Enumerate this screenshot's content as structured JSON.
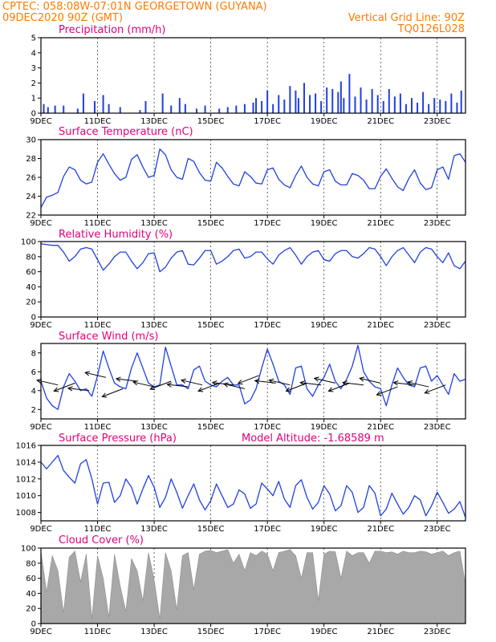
{
  "header": {
    "line1_left": "CPTEC:   058:08W-07:01N   GEORGETOWN (GUYANA)",
    "line2_left": "09DEC2020 90Z (GMT)",
    "line2_right": "Vertical Grid Line: 90Z",
    "line3_right": "TQ0126L028"
  },
  "colors": {
    "header": "#ff7a00",
    "title": "#e0007a",
    "series": "#2040e0",
    "cloud": "#a8a8a8"
  },
  "x_axis": {
    "start_day": 9,
    "end_day": 24,
    "tick_labels": [
      "9DEC",
      "11DEC",
      "13DEC",
      "15DEC",
      "17DEC",
      "19DEC",
      "21DEC",
      "23DEC"
    ]
  },
  "chart_data": [
    {
      "type": "bar",
      "title": "Precipitation (mm/h)",
      "ylim": [
        0,
        5
      ],
      "yticks": [
        0,
        1,
        2,
        3,
        4,
        5
      ],
      "x_day": [
        9.1,
        9.25,
        9.5,
        9.8,
        10.3,
        10.5,
        10.9,
        11.2,
        11.4,
        11.8,
        12.5,
        12.7,
        13.3,
        13.6,
        13.9,
        14.1,
        14.5,
        14.8,
        15.3,
        15.6,
        15.9,
        16.2,
        16.5,
        16.6,
        16.8,
        17.0,
        17.2,
        17.4,
        17.6,
        17.8,
        18.0,
        18.1,
        18.3,
        18.5,
        18.7,
        18.9,
        19.1,
        19.3,
        19.5,
        19.6,
        19.7,
        19.9,
        20.1,
        20.3,
        20.5,
        20.7,
        20.9,
        21.1,
        21.3,
        21.5,
        21.7,
        21.9,
        22.1,
        22.3,
        22.5,
        22.7,
        22.9,
        23.1,
        23.3,
        23.5,
        23.7,
        23.85
      ],
      "values": [
        0.6,
        0.4,
        0.5,
        0.5,
        0.3,
        1.3,
        0.8,
        1.2,
        0.6,
        0.4,
        0.2,
        0.8,
        1.3,
        0.5,
        1.0,
        0.6,
        0.3,
        0.5,
        0.3,
        0.4,
        0.5,
        0.6,
        0.7,
        1.0,
        0.8,
        1.5,
        0.6,
        1.2,
        0.9,
        1.8,
        1.5,
        1.0,
        2.0,
        1.2,
        1.3,
        0.8,
        1.7,
        1.6,
        1.4,
        2.1,
        1.0,
        2.6,
        1.1,
        1.7,
        0.9,
        1.6,
        1.2,
        0.8,
        1.6,
        1.1,
        1.3,
        0.6,
        1.0,
        0.7,
        1.4,
        0.6,
        1.0,
        0.9,
        0.8,
        1.3,
        0.7,
        1.5
      ]
    },
    {
      "type": "line",
      "title": "Surface Temperature (nC)",
      "ylim": [
        22,
        30
      ],
      "yticks": [
        22,
        24,
        26,
        28,
        30
      ],
      "x_day": [
        9.0,
        9.2,
        9.4,
        9.6,
        9.8,
        10.0,
        10.2,
        10.4,
        10.6,
        10.8,
        11.0,
        11.2,
        11.4,
        11.6,
        11.8,
        12.0,
        12.2,
        12.4,
        12.6,
        12.8,
        13.0,
        13.2,
        13.4,
        13.6,
        13.8,
        14.0,
        14.2,
        14.4,
        14.6,
        14.8,
        15.0,
        15.2,
        15.4,
        15.6,
        15.8,
        16.0,
        16.2,
        16.4,
        16.6,
        16.8,
        17.0,
        17.2,
        17.4,
        17.6,
        17.8,
        18.0,
        18.2,
        18.4,
        18.6,
        18.8,
        19.0,
        19.2,
        19.4,
        19.6,
        19.8,
        20.0,
        20.2,
        20.4,
        20.6,
        20.8,
        21.0,
        21.2,
        21.4,
        21.6,
        21.8,
        22.0,
        22.2,
        22.4,
        22.6,
        22.8,
        23.0,
        23.2,
        23.4,
        23.6,
        23.8,
        24.0
      ],
      "values": [
        22.8,
        23.9,
        24.1,
        24.4,
        26.1,
        27.1,
        26.8,
        25.7,
        25.3,
        25.5,
        27.6,
        28.5,
        27.4,
        26.4,
        25.7,
        26.0,
        27.9,
        28.4,
        27.1,
        26.0,
        26.2,
        29.0,
        28.4,
        26.8,
        26.0,
        25.8,
        28.0,
        27.7,
        26.5,
        25.7,
        25.6,
        27.6,
        27.0,
        26.1,
        25.3,
        25.1,
        26.6,
        26.1,
        25.4,
        25.3,
        26.8,
        27.0,
        25.8,
        25.2,
        24.9,
        26.2,
        27.2,
        26.0,
        25.3,
        25.1,
        26.6,
        26.8,
        25.6,
        25.2,
        25.2,
        26.4,
        26.2,
        25.7,
        24.8,
        24.8,
        26.1,
        26.9,
        25.9,
        25.0,
        24.6,
        25.9,
        26.8,
        25.4,
        24.7,
        24.9,
        26.8,
        27.1,
        25.8,
        28.3,
        28.5,
        27.6
      ]
    },
    {
      "type": "line",
      "title": "Relative Humidity (%)",
      "ylim": [
        0,
        100
      ],
      "yticks": [
        0,
        20,
        40,
        60,
        80,
        100
      ],
      "x_day": [
        9.0,
        9.2,
        9.4,
        9.6,
        9.8,
        10.0,
        10.2,
        10.4,
        10.6,
        10.8,
        11.0,
        11.2,
        11.4,
        11.6,
        11.8,
        12.0,
        12.2,
        12.4,
        12.6,
        12.8,
        13.0,
        13.2,
        13.4,
        13.6,
        13.8,
        14.0,
        14.2,
        14.4,
        14.6,
        14.8,
        15.0,
        15.2,
        15.4,
        15.6,
        15.8,
        16.0,
        16.2,
        16.4,
        16.6,
        16.8,
        17.0,
        17.2,
        17.4,
        17.6,
        17.8,
        18.0,
        18.2,
        18.4,
        18.6,
        18.8,
        19.0,
        19.2,
        19.4,
        19.6,
        19.8,
        20.0,
        20.2,
        20.4,
        20.6,
        20.8,
        21.0,
        21.2,
        21.4,
        21.6,
        21.8,
        22.0,
        22.2,
        22.4,
        22.6,
        22.8,
        23.0,
        23.2,
        23.4,
        23.6,
        23.8,
        24.0
      ],
      "values": [
        97,
        96,
        95,
        95,
        86,
        74,
        80,
        90,
        92,
        90,
        76,
        62,
        70,
        80,
        86,
        86,
        74,
        64,
        72,
        84,
        85,
        60,
        66,
        78,
        86,
        88,
        70,
        69,
        78,
        88,
        88,
        70,
        74,
        80,
        88,
        90,
        78,
        80,
        86,
        86,
        77,
        70,
        82,
        88,
        92,
        82,
        70,
        80,
        86,
        88,
        76,
        74,
        84,
        88,
        88,
        80,
        78,
        84,
        92,
        90,
        80,
        68,
        80,
        88,
        92,
        82,
        72,
        86,
        92,
        90,
        80,
        72,
        85,
        68,
        64,
        74
      ]
    },
    {
      "type": "line",
      "title": "Surface Wind (m/s)",
      "ylim": [
        1,
        9
      ],
      "yticks": [
        2,
        4,
        6,
        8
      ],
      "x_day": [
        9.0,
        9.2,
        9.4,
        9.6,
        9.8,
        10.0,
        10.2,
        10.4,
        10.6,
        10.8,
        11.0,
        11.2,
        11.4,
        11.6,
        11.8,
        12.0,
        12.2,
        12.4,
        12.6,
        12.8,
        13.0,
        13.2,
        13.4,
        13.6,
        13.8,
        14.0,
        14.2,
        14.4,
        14.6,
        14.8,
        15.0,
        15.2,
        15.4,
        15.6,
        15.8,
        16.0,
        16.2,
        16.4,
        16.6,
        16.8,
        17.0,
        17.2,
        17.4,
        17.6,
        17.8,
        18.0,
        18.2,
        18.4,
        18.6,
        18.8,
        19.0,
        19.2,
        19.4,
        19.6,
        19.8,
        20.0,
        20.2,
        20.4,
        20.6,
        20.8,
        21.0,
        21.2,
        21.4,
        21.6,
        21.8,
        22.0,
        22.2,
        22.4,
        22.6,
        22.8,
        23.0,
        23.2,
        23.4,
        23.6,
        23.8,
        24.0
      ],
      "values": [
        5.0,
        3.2,
        2.4,
        2.0,
        4.4,
        5.8,
        5.0,
        4.0,
        4.2,
        3.4,
        5.6,
        8.2,
        6.4,
        4.8,
        4.4,
        4.2,
        6.4,
        8.0,
        6.4,
        4.8,
        4.4,
        4.6,
        8.6,
        6.6,
        4.6,
        4.6,
        4.2,
        6.2,
        6.6,
        5.0,
        4.6,
        4.4,
        5.0,
        5.4,
        4.6,
        4.6,
        2.6,
        3.0,
        4.2,
        6.4,
        8.4,
        6.8,
        5.0,
        4.6,
        3.6,
        6.4,
        6.6,
        4.2,
        3.4,
        4.6,
        5.4,
        6.8,
        5.0,
        4.2,
        5.2,
        6.6,
        8.8,
        6.0,
        5.0,
        4.4,
        4.2,
        2.4,
        4.6,
        6.4,
        5.4,
        4.6,
        4.4,
        6.4,
        6.6,
        5.0,
        5.6,
        4.6,
        3.6,
        5.8,
        5.0,
        5.2
      ],
      "arrows_day": [
        9.6,
        10.2,
        10.7,
        11.3,
        11.9,
        12.4,
        13.0,
        13.6,
        14.2,
        14.7,
        15.3,
        15.8,
        16.2,
        16.7,
        17.3,
        17.8,
        18.4,
        18.9,
        19.4,
        19.9,
        20.4,
        21.0,
        21.6,
        22.2,
        22.7,
        23.3
      ],
      "arrows_y": [
        4.6,
        4.8,
        4.0,
        5.4,
        4.2,
        5.0,
        4.4,
        5.0,
        4.4,
        4.6,
        4.8,
        4.6,
        4.2,
        5.6,
        4.8,
        4.6,
        4.8,
        4.6,
        4.8,
        4.8,
        4.6,
        4.8,
        4.4,
        4.6,
        4.4,
        4.6
      ]
    },
    {
      "type": "line",
      "title": "Surface Pressure (hPa)",
      "subtitle": "Model Altitude: -1.68589 m",
      "ylim": [
        1007,
        1016
      ],
      "yticks": [
        1008,
        1010,
        1012,
        1014,
        1016
      ],
      "x_day": [
        9.0,
        9.2,
        9.4,
        9.6,
        9.8,
        10.0,
        10.2,
        10.4,
        10.6,
        10.8,
        11.0,
        11.2,
        11.4,
        11.6,
        11.8,
        12.0,
        12.2,
        12.4,
        12.6,
        12.8,
        13.0,
        13.2,
        13.4,
        13.6,
        13.8,
        14.0,
        14.2,
        14.4,
        14.6,
        14.8,
        15.0,
        15.2,
        15.4,
        15.6,
        15.8,
        16.0,
        16.2,
        16.4,
        16.6,
        16.8,
        17.0,
        17.2,
        17.4,
        17.6,
        17.8,
        18.0,
        18.2,
        18.4,
        18.6,
        18.8,
        19.0,
        19.2,
        19.4,
        19.6,
        19.8,
        20.0,
        20.2,
        20.4,
        20.6,
        20.8,
        21.0,
        21.2,
        21.4,
        21.6,
        21.8,
        22.0,
        22.2,
        22.4,
        22.6,
        22.8,
        23.0,
        23.2,
        23.4,
        23.6,
        23.8,
        24.0
      ],
      "values": [
        1014.0,
        1013.2,
        1014.0,
        1014.8,
        1013.0,
        1012.2,
        1011.5,
        1013.8,
        1014.3,
        1012.0,
        1009.0,
        1011.5,
        1011.6,
        1009.2,
        1010.0,
        1012.0,
        1011.0,
        1009.0,
        1010.8,
        1012.4,
        1011.0,
        1008.6,
        1009.8,
        1012.0,
        1010.4,
        1008.5,
        1010.0,
        1011.4,
        1009.5,
        1008.3,
        1009.4,
        1011.4,
        1010.0,
        1008.6,
        1009.0,
        1010.7,
        1010.2,
        1008.5,
        1009.0,
        1011.5,
        1010.8,
        1010.0,
        1011.7,
        1009.6,
        1008.6,
        1011.2,
        1011.9,
        1009.8,
        1008.4,
        1009.2,
        1011.2,
        1010.2,
        1008.2,
        1008.8,
        1011.2,
        1010.4,
        1008.0,
        1008.6,
        1011.2,
        1010.3,
        1007.6,
        1008.4,
        1010.3,
        1009.0,
        1007.8,
        1008.6,
        1010.0,
        1009.5,
        1007.6,
        1008.8,
        1010.4,
        1009.2,
        1007.9,
        1008.4,
        1009.3,
        1007.4
      ]
    },
    {
      "type": "area",
      "title": "Cloud Cover (%)",
      "ylim": [
        0,
        100
      ],
      "yticks": [
        0,
        20,
        40,
        60,
        80,
        100
      ],
      "x_day": [
        9.0,
        9.2,
        9.4,
        9.6,
        9.8,
        10.0,
        10.2,
        10.4,
        10.6,
        10.8,
        11.0,
        11.2,
        11.4,
        11.6,
        11.8,
        12.0,
        12.2,
        12.4,
        12.6,
        12.8,
        13.0,
        13.2,
        13.4,
        13.6,
        13.8,
        14.0,
        14.2,
        14.4,
        14.6,
        14.8,
        15.0,
        15.2,
        15.4,
        15.6,
        15.8,
        16.0,
        16.2,
        16.4,
        16.6,
        16.8,
        17.0,
        17.2,
        17.4,
        17.6,
        17.8,
        18.0,
        18.2,
        18.4,
        18.6,
        18.8,
        19.0,
        19.2,
        19.4,
        19.6,
        19.8,
        20.0,
        20.2,
        20.4,
        20.6,
        20.8,
        21.0,
        21.2,
        21.4,
        21.6,
        21.8,
        22.0,
        22.2,
        22.4,
        22.6,
        22.8,
        23.0,
        23.2,
        23.4,
        23.6,
        23.8,
        24.0
      ],
      "values": [
        96,
        42,
        90,
        70,
        14,
        88,
        96,
        55,
        92,
        6,
        90,
        60,
        8,
        92,
        50,
        16,
        86,
        70,
        30,
        94,
        58,
        6,
        94,
        70,
        18,
        90,
        94,
        45,
        92,
        96,
        97,
        94,
        96,
        98,
        80,
        92,
        70,
        94,
        90,
        96,
        92,
        70,
        94,
        96,
        98,
        90,
        60,
        94,
        94,
        30,
        92,
        96,
        95,
        60,
        96,
        90,
        94,
        94,
        80,
        96,
        96,
        94,
        95,
        92,
        96,
        94,
        94,
        96,
        95,
        92,
        94,
        96,
        90,
        94,
        96,
        52
      ]
    }
  ]
}
